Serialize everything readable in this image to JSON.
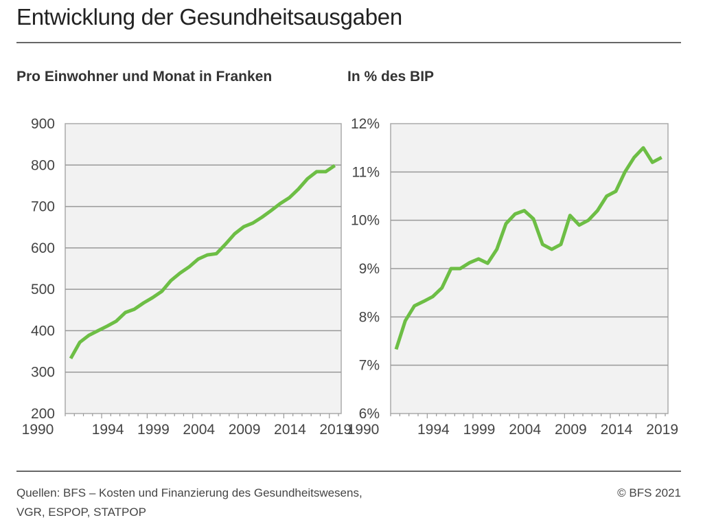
{
  "title": "Entwicklung der Gesundheitsausgaben",
  "footer": {
    "source_line1": "Quellen: BFS – Kosten und Finanzierung des Gesundheitswesens,",
    "source_line2": "VGR, ESPOP, STATPOP",
    "copyright": "© BFS 2021"
  },
  "chart_data": [
    {
      "type": "line",
      "title": "Pro Einwohner und Monat in Franken",
      "ylim": [
        200,
        900
      ],
      "yticks": [
        "200",
        "300",
        "400",
        "500",
        "600",
        "700",
        "800",
        "900"
      ],
      "xlim": [
        1990,
        2020
      ],
      "xticks": [
        "1990",
        "1994",
        "1999",
        "2004",
        "2009",
        "2014",
        "2019"
      ],
      "grid": true,
      "line_color": "#6dbe45",
      "background": "#f2f2f2",
      "x": [
        1990,
        1991,
        1992,
        1993,
        1994,
        1995,
        1996,
        1997,
        1998,
        1999,
        2000,
        2001,
        2002,
        2003,
        2004,
        2005,
        2006,
        2007,
        2008,
        2009,
        2010,
        2011,
        2012,
        2013,
        2014,
        2015,
        2016,
        2017,
        2018,
        2019
      ],
      "values": [
        333,
        372,
        389,
        400,
        411,
        423,
        444,
        452,
        467,
        480,
        495,
        521,
        539,
        554,
        573,
        583,
        586,
        609,
        634,
        651,
        660,
        674,
        690,
        707,
        721,
        742,
        767,
        784,
        784,
        799
      ]
    },
    {
      "type": "line",
      "title": "In % des BIP",
      "ylim": [
        6,
        12
      ],
      "yticks": [
        "6%",
        "7%",
        "8%",
        "9%",
        "10%",
        "11%",
        "12%"
      ],
      "xlim": [
        1990,
        2020
      ],
      "xticks": [
        "1990",
        "1994",
        "1999",
        "2004",
        "2009",
        "2014",
        "2019"
      ],
      "grid": true,
      "line_color": "#6dbe45",
      "background": "#f2f2f2",
      "x": [
        1990,
        1991,
        1992,
        1993,
        1994,
        1995,
        1996,
        1997,
        1998,
        1999,
        2000,
        2001,
        2002,
        2003,
        2004,
        2005,
        2006,
        2007,
        2008,
        2009,
        2010,
        2011,
        2012,
        2013,
        2014,
        2015,
        2016,
        2017,
        2018,
        2019
      ],
      "values": [
        7.33,
        7.92,
        8.23,
        8.32,
        8.42,
        8.6,
        9.0,
        9.0,
        9.12,
        9.2,
        9.11,
        9.4,
        9.93,
        10.13,
        10.2,
        10.03,
        9.5,
        9.4,
        9.5,
        10.1,
        9.9,
        10.0,
        10.2,
        10.5,
        10.6,
        11.0,
        11.3,
        11.5,
        11.2,
        11.3
      ]
    }
  ]
}
